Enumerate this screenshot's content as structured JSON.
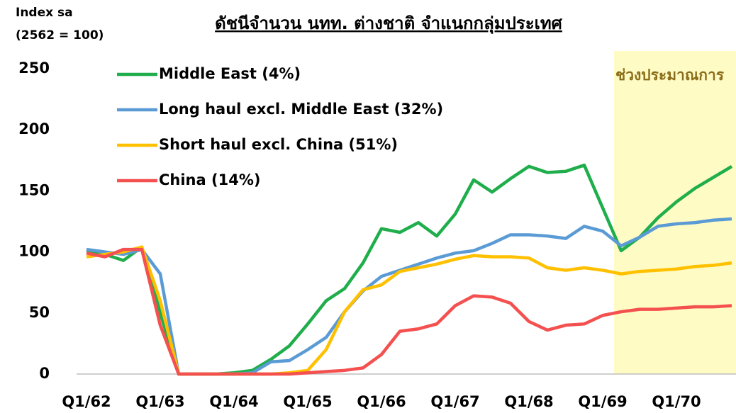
{
  "chart_data": {
    "type": "line",
    "title": "ดัชนีจำนวน นทท. ต่างชาติ จำแนกกลุ่มประเทศ",
    "y_label": [
      "Index sa",
      "(2562 = 100)"
    ],
    "annotation": "ช่วงประมาณการ",
    "categories": [
      "Q1/62",
      null,
      null,
      null,
      "Q1/63",
      null,
      null,
      null,
      "Q1/64",
      null,
      null,
      null,
      "Q1/65",
      null,
      null,
      null,
      "Q1/66",
      null,
      null,
      null,
      "Q1/67",
      null,
      null,
      null,
      "Q1/68",
      null,
      null,
      null,
      "Q1/69",
      null,
      null,
      null,
      "Q1/70",
      null,
      null,
      null
    ],
    "series": [
      {
        "name": "Middle East (4%)",
        "color": "#1fae4b",
        "values": [
          101,
          98,
          93,
          104,
          50,
          0,
          0,
          0,
          1,
          3,
          12,
          23,
          41,
          60,
          70,
          91,
          119,
          116,
          124,
          113,
          131,
          159,
          149,
          160,
          170,
          165,
          166,
          171,
          136,
          101,
          112,
          128,
          141,
          152,
          161,
          170
        ]
      },
      {
        "name": "Long haul excl. Middle East (32%)",
        "color": "#5b9bd5",
        "values": [
          102,
          100,
          98,
          102,
          82,
          0,
          0,
          0,
          0,
          1,
          10,
          11,
          20,
          30,
          51,
          68,
          80,
          85,
          90,
          95,
          99,
          101,
          107,
          114,
          114,
          113,
          111,
          121,
          117,
          105,
          112,
          121,
          123,
          124,
          126,
          127
        ]
      },
      {
        "name": "Short haul excl. China (51%)",
        "color": "#ffc000",
        "values": [
          96,
          98,
          100,
          104,
          60,
          0,
          0,
          0,
          0,
          0,
          0,
          1,
          3,
          20,
          51,
          69,
          73,
          84,
          87,
          90,
          94,
          97,
          96,
          96,
          95,
          87,
          85,
          87,
          85,
          82,
          84,
          85,
          86,
          88,
          89,
          91
        ]
      },
      {
        "name": "China (14%)",
        "color": "#f4504f",
        "values": [
          99,
          96,
          102,
          102,
          40,
          0,
          0,
          0,
          0,
          0,
          0,
          0,
          1,
          2,
          3,
          5,
          16,
          35,
          37,
          41,
          56,
          64,
          63,
          58,
          43,
          36,
          40,
          41,
          48,
          51,
          53,
          53,
          54,
          55,
          55,
          56
        ]
      }
    ],
    "ylim": [
      0,
      250
    ],
    "yticks": [
      0,
      50,
      100,
      150,
      200,
      250
    ],
    "grid": false,
    "legend": "upper left"
  }
}
